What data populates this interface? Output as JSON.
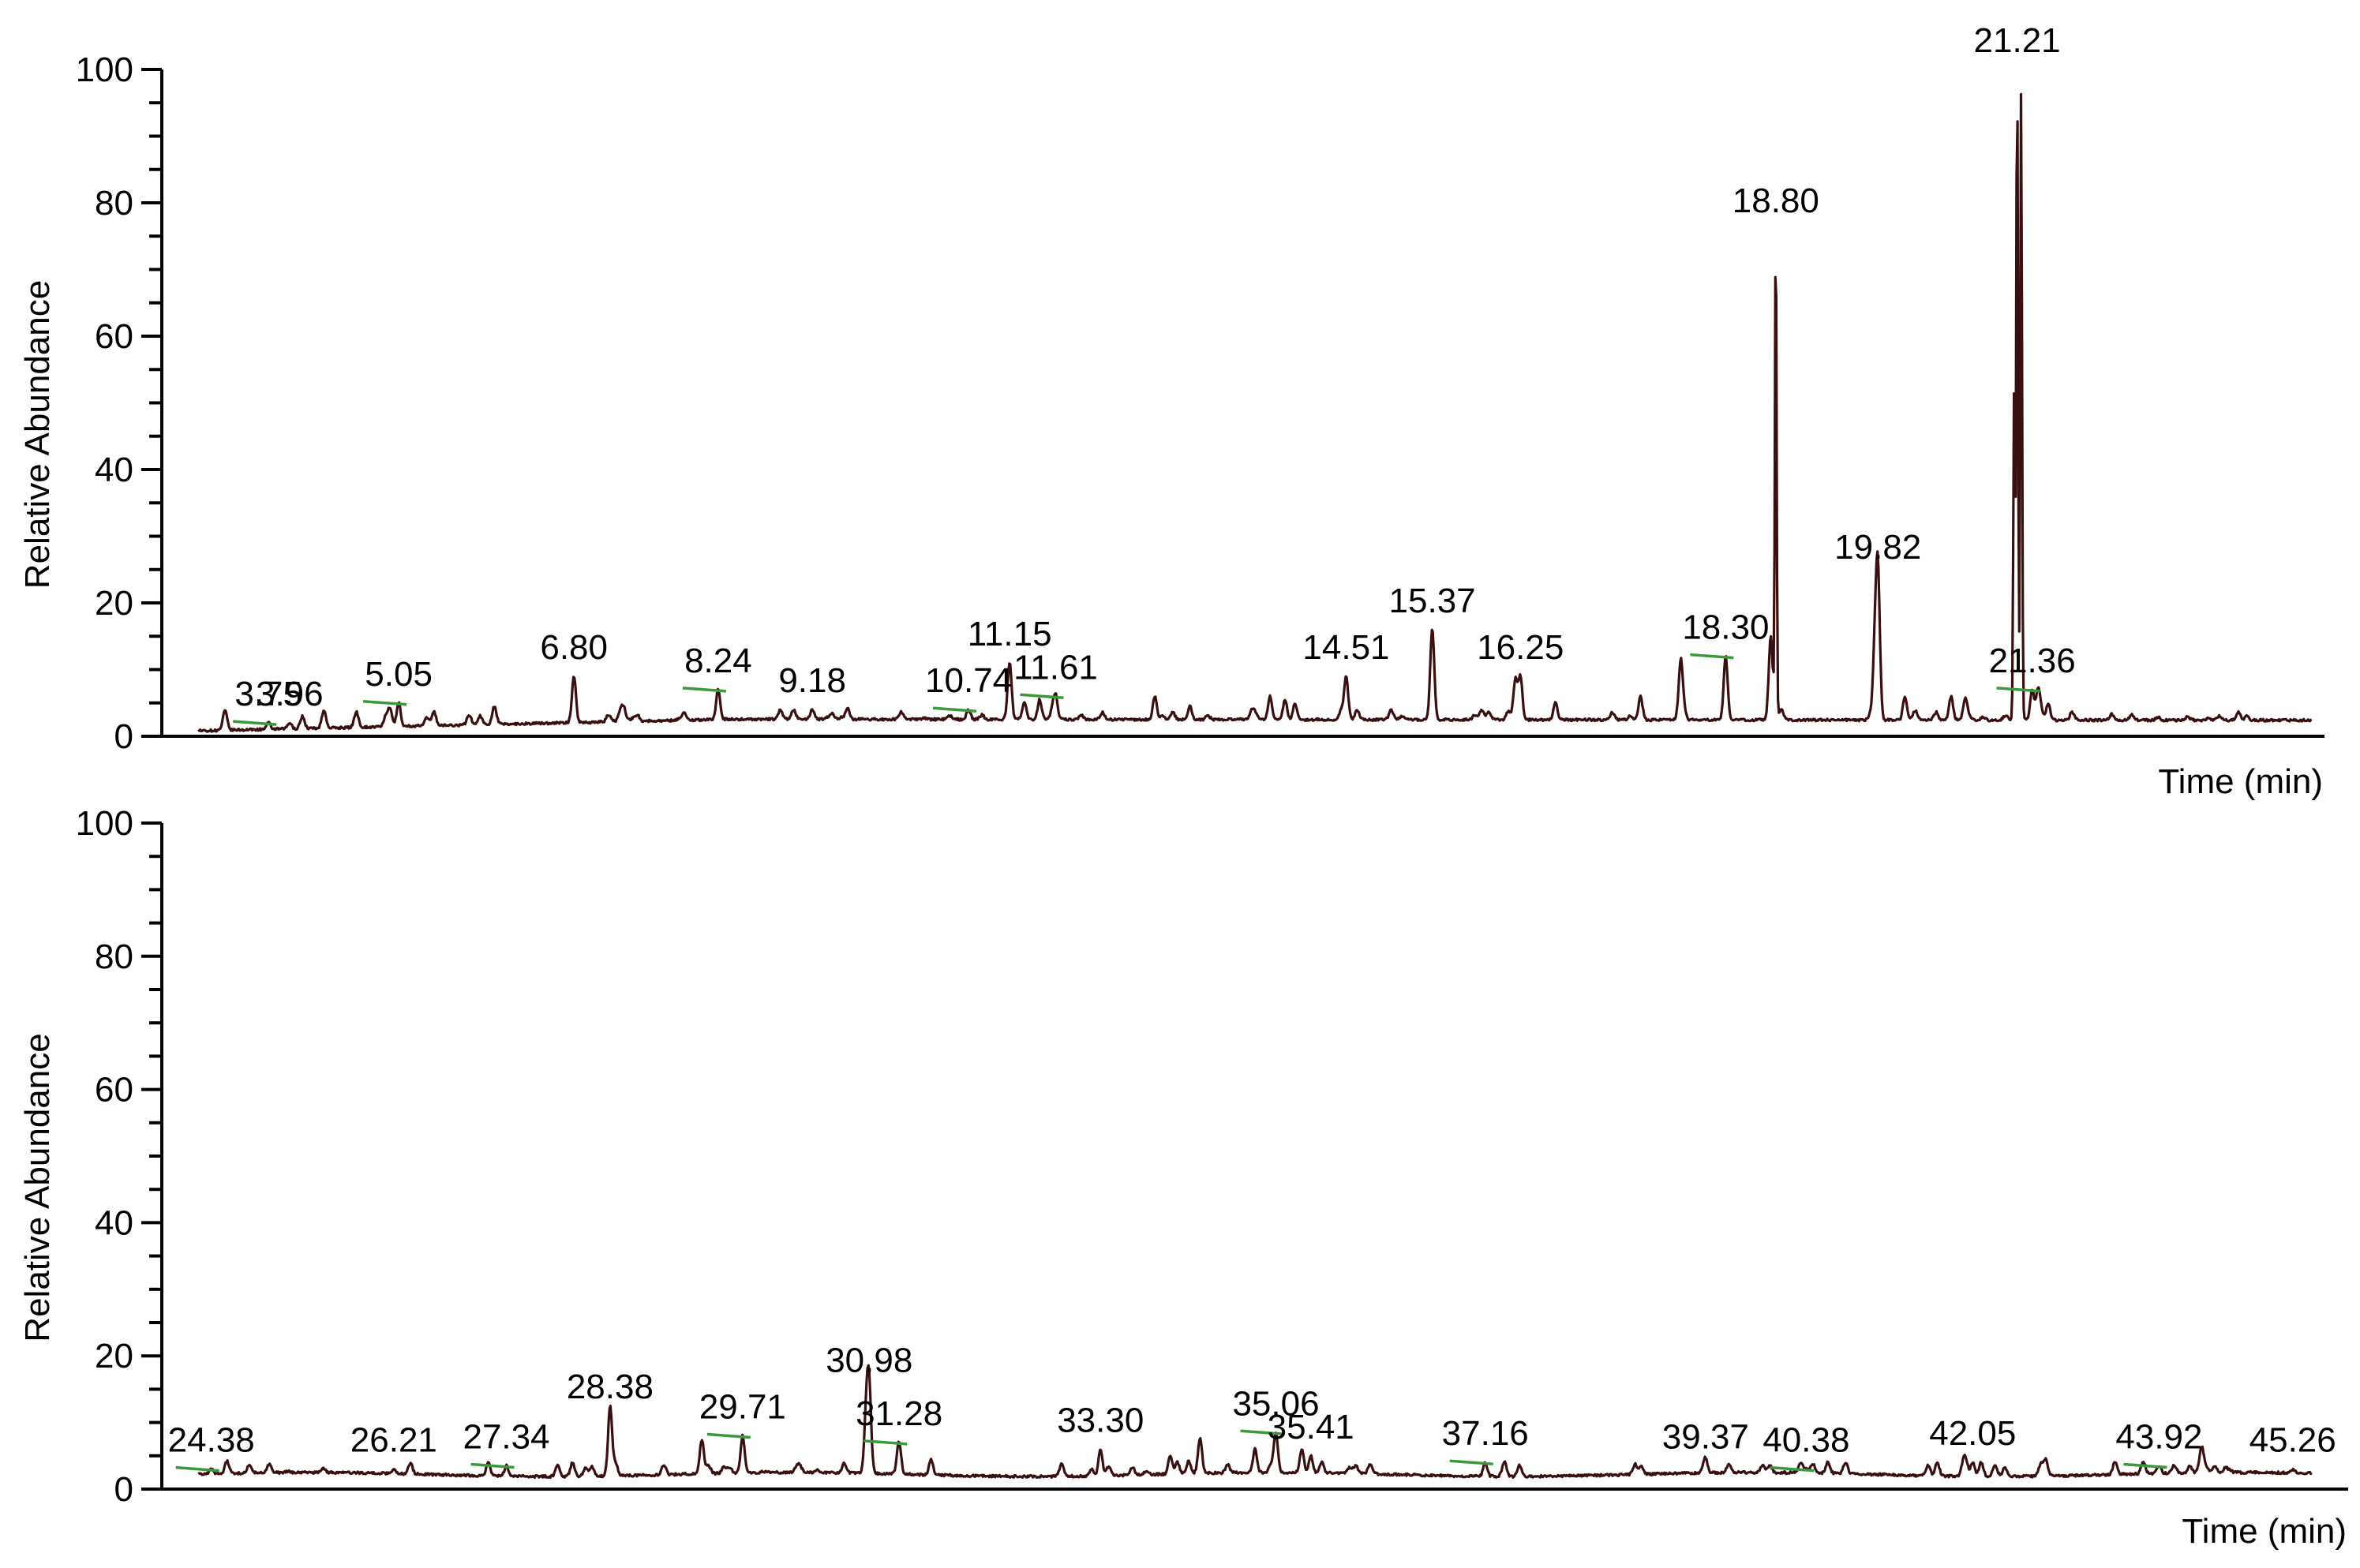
{
  "chart_data": [
    {
      "type": "line",
      "panel": "top",
      "ylabel": "Relative Abundance",
      "xlabel": "Time (min)",
      "ylim": [
        0,
        100
      ],
      "yticks": [
        "0",
        "20",
        "40",
        "60",
        "80",
        "100"
      ],
      "xlim": [
        3.0,
        24.2
      ],
      "peaks": [
        {
          "t": 3.75,
          "y": 2,
          "label": "3.75"
        },
        {
          "t": 3.96,
          "y": 2,
          "label": "3.96"
        },
        {
          "t": 5.05,
          "y": 5,
          "label": "5.05"
        },
        {
          "t": 6.8,
          "y": 9,
          "label": "6.80"
        },
        {
          "t": 8.24,
          "y": 7,
          "label": "8.24"
        },
        {
          "t": 9.18,
          "y": 4,
          "label": "9.18"
        },
        {
          "t": 10.74,
          "y": 4,
          "label": "10.74"
        },
        {
          "t": 11.15,
          "y": 11,
          "label": "11.15"
        },
        {
          "t": 11.61,
          "y": 6,
          "label": "11.61"
        },
        {
          "t": 14.51,
          "y": 9,
          "label": "14.51"
        },
        {
          "t": 15.37,
          "y": 16,
          "label": "15.37"
        },
        {
          "t": 16.25,
          "y": 9,
          "label": "16.25"
        },
        {
          "t": 18.3,
          "y": 12,
          "label": "18.30"
        },
        {
          "t": 18.8,
          "y": 76,
          "label": "18.80"
        },
        {
          "t": 19.82,
          "y": 24,
          "label": "19.82"
        },
        {
          "t": 21.21,
          "y": 100,
          "label": "21.21"
        },
        {
          "t": 21.36,
          "y": 7,
          "label": "21.36"
        }
      ],
      "minor_peaks": [
        {
          "t": 7.9,
          "y": 3.5
        },
        {
          "t": 11.3,
          "y": 5
        },
        {
          "t": 11.45,
          "y": 5.5
        },
        {
          "t": 12.6,
          "y": 6
        },
        {
          "t": 12.95,
          "y": 4.5
        },
        {
          "t": 13.75,
          "y": 6
        },
        {
          "t": 13.9,
          "y": 5.5
        },
        {
          "t": 14.0,
          "y": 5
        },
        {
          "t": 16.2,
          "y": 8.5
        },
        {
          "t": 16.6,
          "y": 5
        },
        {
          "t": 17.45,
          "y": 6
        },
        {
          "t": 17.85,
          "y": 11
        },
        {
          "t": 18.75,
          "y": 15
        },
        {
          "t": 19.79,
          "y": 12
        },
        {
          "t": 20.09,
          "y": 6
        },
        {
          "t": 20.55,
          "y": 5.5
        },
        {
          "t": 20.69,
          "y": 5.5
        },
        {
          "t": 21.18,
          "y": 52
        },
        {
          "t": 21.25,
          "y": 96
        },
        {
          "t": 21.42,
          "y": 7
        },
        {
          "t": 21.52,
          "y": 5
        }
      ]
    },
    {
      "type": "line",
      "panel": "bottom",
      "ylabel": "Relative Abundance",
      "xlabel": "Time (min)",
      "ylim": [
        0,
        100
      ],
      "yticks": [
        "0",
        "20",
        "40",
        "60",
        "80",
        "100"
      ],
      "xlim": [
        24.2,
        45.5
      ],
      "peaks": [
        {
          "t": 24.38,
          "y": 3,
          "label": "24.38"
        },
        {
          "t": 26.21,
          "y": 3,
          "label": "26.21"
        },
        {
          "t": 27.34,
          "y": 3.5,
          "label": "27.34"
        },
        {
          "t": 28.38,
          "y": 11,
          "label": "28.38"
        },
        {
          "t": 29.71,
          "y": 8,
          "label": "29.71"
        },
        {
          "t": 30.98,
          "y": 15,
          "label": "30.98"
        },
        {
          "t": 31.28,
          "y": 7,
          "label": "31.28"
        },
        {
          "t": 33.3,
          "y": 6,
          "label": "33.30"
        },
        {
          "t": 35.06,
          "y": 8.5,
          "label": "35.06"
        },
        {
          "t": 35.41,
          "y": 5,
          "label": "35.41"
        },
        {
          "t": 37.16,
          "y": 4,
          "label": "37.16"
        },
        {
          "t": 39.37,
          "y": 3.5,
          "label": "39.37"
        },
        {
          "t": 40.38,
          "y": 3,
          "label": "40.38"
        },
        {
          "t": 42.05,
          "y": 4,
          "label": "42.05"
        },
        {
          "t": 43.92,
          "y": 3.5,
          "label": "43.92"
        },
        {
          "t": 45.26,
          "y": 3,
          "label": "45.26"
        }
      ],
      "minor_peaks": [
        {
          "t": 29.3,
          "y": 7.5
        },
        {
          "t": 30.95,
          "y": 11
        },
        {
          "t": 31.6,
          "y": 4.5
        },
        {
          "t": 34.0,
          "y": 5
        },
        {
          "t": 34.3,
          "y": 6
        },
        {
          "t": 34.85,
          "y": 6
        },
        {
          "t": 35.32,
          "y": 6
        },
        {
          "t": 35.52,
          "y": 4
        }
      ]
    }
  ]
}
